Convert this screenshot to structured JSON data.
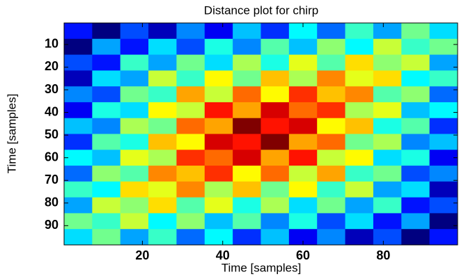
{
  "chart_data": {
    "type": "heatmap",
    "title": "Distance plot for chirp",
    "xlabel": "Time [samples]",
    "ylabel": "Time [samples]",
    "colormap": "jet",
    "yreverse": true,
    "xlim": [
      0.5,
      98.5
    ],
    "ylim": [
      0.5,
      98.5
    ],
    "xticks": [
      20,
      40,
      60,
      80
    ],
    "yticks": [
      10,
      20,
      30,
      40,
      50,
      60,
      70,
      80,
      90
    ],
    "x": [
      4,
      11,
      18,
      25,
      32,
      39,
      46,
      53,
      60,
      67,
      74,
      81,
      88,
      95
    ],
    "y": [
      4,
      11,
      18,
      25,
      32,
      39,
      46,
      53,
      60,
      67,
      74,
      81,
      88,
      95
    ],
    "z": [
      [
        0.2,
        0.1,
        0.24,
        0.14,
        0.28,
        0.18,
        0.32,
        0.22,
        0.36,
        0.26,
        0.4,
        0.3,
        0.44,
        0.34
      ],
      [
        0.1,
        0.3,
        0.2,
        0.34,
        0.24,
        0.38,
        0.28,
        0.42,
        0.32,
        0.46,
        0.36,
        0.5,
        0.4,
        0.44
      ],
      [
        0.24,
        0.2,
        0.4,
        0.3,
        0.44,
        0.34,
        0.48,
        0.38,
        0.52,
        0.42,
        0.56,
        0.46,
        0.5,
        0.3
      ],
      [
        0.14,
        0.34,
        0.3,
        0.5,
        0.4,
        0.54,
        0.44,
        0.58,
        0.48,
        0.62,
        0.52,
        0.56,
        0.36,
        0.4
      ],
      [
        0.28,
        0.24,
        0.44,
        0.4,
        0.6,
        0.5,
        0.64,
        0.54,
        0.68,
        0.58,
        0.62,
        0.42,
        0.46,
        0.26
      ],
      [
        0.18,
        0.38,
        0.34,
        0.54,
        0.5,
        0.7,
        0.6,
        0.74,
        0.64,
        0.68,
        0.48,
        0.52,
        0.32,
        0.36
      ],
      [
        0.32,
        0.28,
        0.48,
        0.44,
        0.64,
        0.6,
        0.8,
        0.7,
        0.74,
        0.54,
        0.58,
        0.38,
        0.42,
        0.22
      ],
      [
        0.22,
        0.42,
        0.38,
        0.58,
        0.54,
        0.74,
        0.7,
        0.8,
        0.6,
        0.64,
        0.44,
        0.48,
        0.28,
        0.32
      ],
      [
        0.36,
        0.32,
        0.52,
        0.48,
        0.68,
        0.64,
        0.74,
        0.6,
        0.7,
        0.5,
        0.54,
        0.34,
        0.38,
        0.18
      ],
      [
        0.26,
        0.46,
        0.42,
        0.62,
        0.58,
        0.68,
        0.54,
        0.64,
        0.5,
        0.6,
        0.4,
        0.44,
        0.24,
        0.28
      ],
      [
        0.4,
        0.36,
        0.56,
        0.52,
        0.62,
        0.48,
        0.58,
        0.44,
        0.54,
        0.4,
        0.5,
        0.3,
        0.34,
        0.14
      ],
      [
        0.3,
        0.5,
        0.46,
        0.56,
        0.42,
        0.52,
        0.38,
        0.48,
        0.34,
        0.44,
        0.3,
        0.4,
        0.2,
        0.24
      ],
      [
        0.44,
        0.4,
        0.5,
        0.36,
        0.46,
        0.32,
        0.42,
        0.28,
        0.38,
        0.24,
        0.34,
        0.2,
        0.3,
        0.1
      ],
      [
        0.34,
        0.44,
        0.3,
        0.4,
        0.26,
        0.36,
        0.22,
        0.32,
        0.18,
        0.28,
        0.14,
        0.24,
        0.1,
        0.2
      ]
    ]
  }
}
